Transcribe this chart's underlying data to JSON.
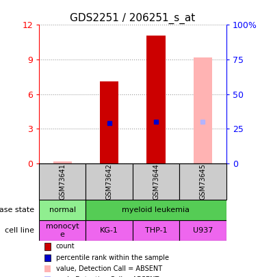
{
  "title": "GDS2251 / 206251_s_at",
  "samples": [
    "GSM73641",
    "GSM73642",
    "GSM73644",
    "GSM73645"
  ],
  "bar_positions": [
    0,
    1,
    2,
    3
  ],
  "bar_width": 0.4,
  "count_values": [
    null,
    7.1,
    11.1,
    null
  ],
  "count_color": "#cc0000",
  "absent_value_values": [
    0.18,
    null,
    null,
    9.2
  ],
  "absent_value_color": "#ffb3b3",
  "percentile_rank_values": [
    null,
    3.5,
    3.6,
    null
  ],
  "percentile_rank_color": "#0000cc",
  "absent_rank_values": [
    null,
    null,
    null,
    3.6
  ],
  "absent_rank_color": "#b3b3ff",
  "ylim_left": [
    0,
    12
  ],
  "ylim_right": [
    0,
    100
  ],
  "yticks_left": [
    0,
    3,
    6,
    9,
    12
  ],
  "ytick_labels_left": [
    "0",
    "3",
    "6",
    "9",
    "12"
  ],
  "yticks_right": [
    0,
    25,
    50,
    75,
    100
  ],
  "ytick_labels_right": [
    "0",
    "25",
    "50",
    "75",
    "100%"
  ],
  "disease_state_normal_color": "#90ee90",
  "disease_state_leukemia_color": "#55cc55",
  "cell_line_values": [
    "monocyt\ne",
    "KG-1",
    "THP-1",
    "U937"
  ],
  "cell_line_color": "#ee66ee",
  "sample_bg_color": "#cccccc",
  "legend_items": [
    {
      "label": "count",
      "color": "#cc0000"
    },
    {
      "label": "percentile rank within the sample",
      "color": "#0000cc"
    },
    {
      "label": "value, Detection Call = ABSENT",
      "color": "#ffb3b3"
    },
    {
      "label": "rank, Detection Call = ABSENT",
      "color": "#b3b3ff"
    }
  ],
  "bar_marker_size": 5,
  "grid_alpha": 0.4,
  "arrow_color": "#888888"
}
